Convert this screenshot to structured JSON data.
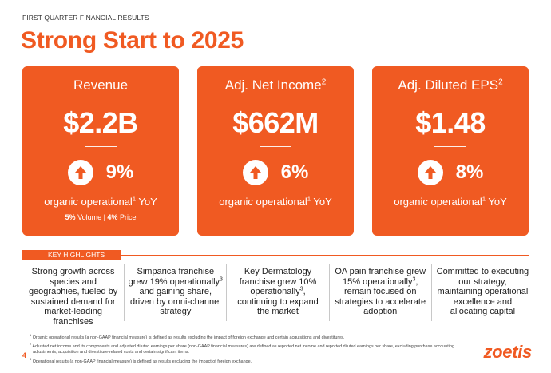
{
  "header": {
    "eyebrow": "FIRST QUARTER  FINANCIAL RESULTS",
    "title": "Strong Start to 2025"
  },
  "cards": [
    {
      "title": "Revenue",
      "title_sup": "",
      "value": "$2.2B",
      "growth": "9%",
      "growth_icon": "up-arrow-icon",
      "note": "organic operational",
      "note_sup": "1",
      "note_suffix": " YoY",
      "sub_volume_value": "5%",
      "sub_volume_label": " Volume | ",
      "sub_price_value": "4%",
      "sub_price_label": " Price"
    },
    {
      "title": "Adj. Net Income",
      "title_sup": "2",
      "value": "$662M",
      "growth": "6%",
      "growth_icon": "up-arrow-icon",
      "note": "organic operational",
      "note_sup": "1",
      "note_suffix": " YoY"
    },
    {
      "title": "Adj. Diluted EPS",
      "title_sup": "2",
      "value": "$1.48",
      "growth": "8%",
      "growth_icon": "up-arrow-icon",
      "note": "organic operational",
      "note_sup": "1",
      "note_suffix": " YoY"
    }
  ],
  "key_highlights": {
    "label": "KEY HIGHLIGHTS",
    "items": [
      {
        "text": "Strong growth across species and geographies, fueled by sustained demand for market-leading franchises"
      },
      {
        "pre": "Simparica franchise grew 19% operationally",
        "sup": "3",
        "post": " and gaining share, driven by omni-channel strategy"
      },
      {
        "pre": "Key Dermatology franchise grew 10% operationally",
        "sup": "3",
        "post": ", continuing to expand the market"
      },
      {
        "pre": "OA pain franchise grew 15% operationally",
        "sup": "3",
        "post": ", remain focused on strategies to accelerate adoption"
      },
      {
        "text": "Committed to executing our strategy, maintaining operational excellence and allocating capital"
      }
    ]
  },
  "footnotes": [
    {
      "num": "1",
      "text": " Organic operational results (a non-GAAP financial measure) is defined as results excluding the impact of foreign exchange and certain acquisitions and divestitures."
    },
    {
      "num": "2",
      "text": " Adjusted net income and its components and adjusted diluted earnings per share (non-GAAP financial measures) are defined as reported net income and reported diluted earnings per share, excluding purchase accounting adjustments, acquisition and divestiture-related costs and certain significant items."
    },
    {
      "num": "3",
      "text": " Operational results (a non-GAAP financial measure) is defined as results excluding the impact of foreign exchange."
    }
  ],
  "page_number": "4",
  "logo": "zoetis",
  "colors": {
    "accent": "#f05a22",
    "card_text": "#ffffff",
    "divider": "#c8c8c8"
  }
}
